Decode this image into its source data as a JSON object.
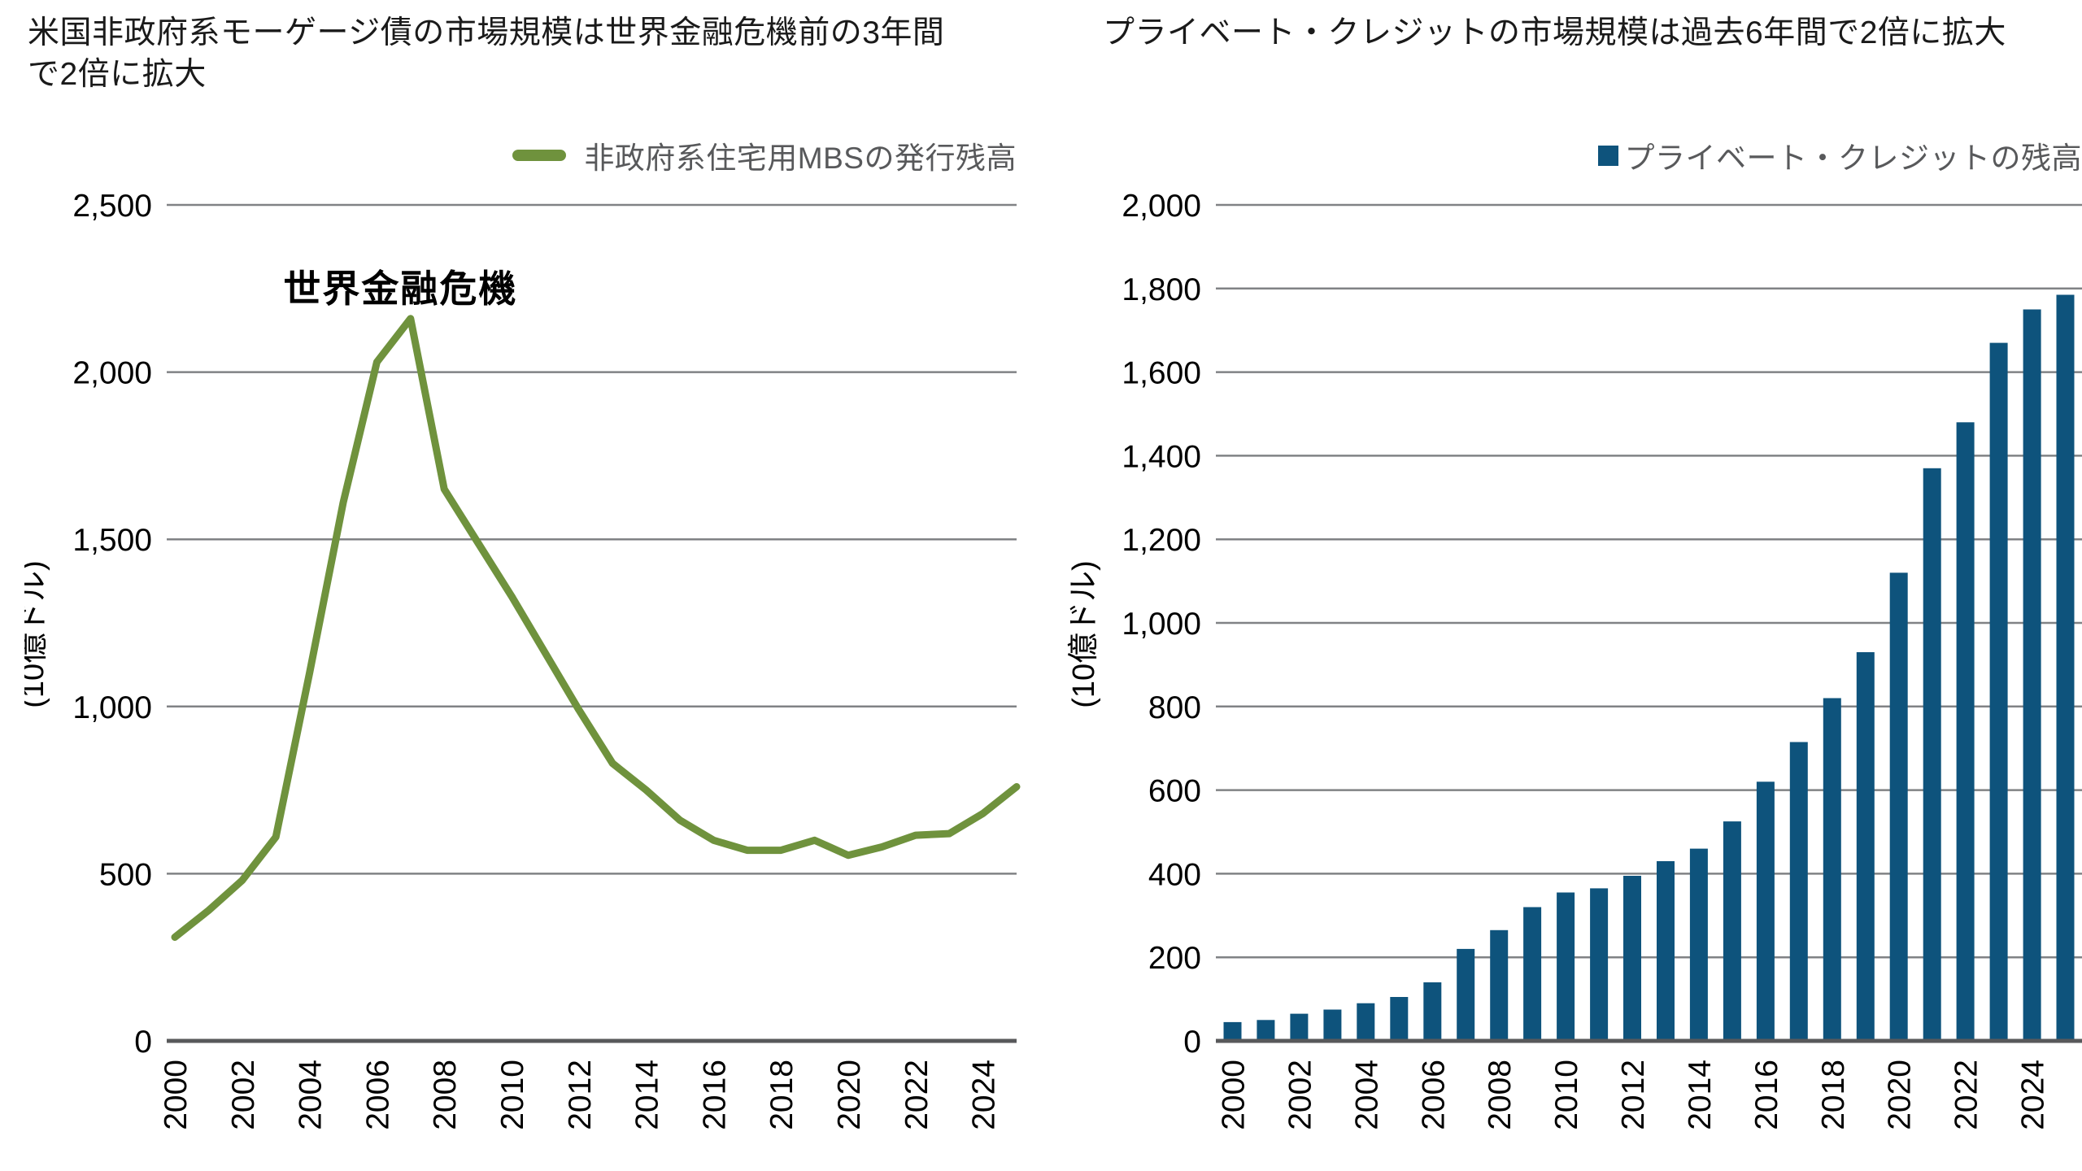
{
  "colors": {
    "line_green": "#6F923D",
    "bar_blue": "#0E537C",
    "legend_text": "#58595B",
    "gridline": "#808285",
    "axis_line": "#58595B",
    "title_text": "#1A1A1A",
    "tick_text": "#000000",
    "annotation_text": "#000000",
    "background": "#FFFFFF"
  },
  "chart_data": [
    {
      "type": "line",
      "title": "米国非政府系モーゲージ債の市場規模は世界金融危機前の3年間で2倍に拡大",
      "title_lines": [
        "米国非政府系モーゲージ債の市場規模は世界金融危機前の3年間",
        "で2倍に拡大"
      ],
      "legend": {
        "label": "非政府系住宅用MBSの発行残高",
        "marker": "line"
      },
      "ylabel": "(10億ドル)",
      "x": [
        2000,
        2001,
        2002,
        2003,
        2004,
        2005,
        2006,
        2007,
        2008,
        2009,
        2010,
        2011,
        2012,
        2013,
        2014,
        2015,
        2016,
        2017,
        2018,
        2019,
        2020,
        2021,
        2022,
        2023,
        2024,
        2025
      ],
      "values": [
        310,
        390,
        480,
        610,
        1100,
        1610,
        2030,
        2160,
        1650,
        1490,
        1330,
        1160,
        990,
        830,
        750,
        660,
        600,
        570,
        570,
        600,
        555,
        580,
        615,
        620,
        680,
        760
      ],
      "x_tick_labels": [
        "2000",
        "2002",
        "2004",
        "2006",
        "2008",
        "2010",
        "2012",
        "2014",
        "2016",
        "2018",
        "2020",
        "2022",
        "2024"
      ],
      "y_ticks": [
        "0",
        "500",
        "1,000",
        "1,500",
        "2,000",
        "2,500"
      ],
      "y_tick_values": [
        0,
        500,
        1000,
        1500,
        2000,
        2500
      ],
      "ylim": [
        0,
        2500
      ],
      "grid": true,
      "legend_position": "top-right",
      "line_color": "#6F923D",
      "annotation": {
        "text": "世界金融危機",
        "year": 2006.7,
        "value": 2210
      }
    },
    {
      "type": "bar",
      "title": "プライベート・クレジットの市場規模は過去6年間で2倍に拡大",
      "title_lines": [
        "プライベート・クレジットの市場規模は過去6年間で2倍に拡大"
      ],
      "legend": {
        "label": "プライベート・クレジットの残高",
        "marker": "square"
      },
      "ylabel": "(10億ドル)",
      "x": [
        2000,
        2001,
        2002,
        2003,
        2004,
        2005,
        2006,
        2007,
        2008,
        2009,
        2010,
        2011,
        2012,
        2013,
        2014,
        2015,
        2016,
        2017,
        2018,
        2019,
        2020,
        2021,
        2022,
        2023,
        2024,
        2025
      ],
      "values": [
        45,
        50,
        65,
        75,
        90,
        105,
        140,
        220,
        265,
        320,
        355,
        365,
        395,
        430,
        460,
        525,
        620,
        715,
        820,
        930,
        1120,
        1370,
        1480,
        1670,
        1750,
        1785
      ],
      "x_tick_labels": [
        "2000",
        "2002",
        "2004",
        "2006",
        "2008",
        "2010",
        "2012",
        "2014",
        "2016",
        "2018",
        "2020",
        "2022",
        "2024"
      ],
      "y_ticks": [
        "0",
        "200",
        "400",
        "600",
        "800",
        "1,000",
        "1,200",
        "1,400",
        "1,600",
        "1,800",
        "2,000"
      ],
      "y_tick_values": [
        0,
        200,
        400,
        600,
        800,
        1000,
        1200,
        1400,
        1600,
        1800,
        2000
      ],
      "ylim": [
        0,
        2000
      ],
      "grid": true,
      "legend_position": "top-right",
      "bar_color": "#0E537C"
    }
  ]
}
